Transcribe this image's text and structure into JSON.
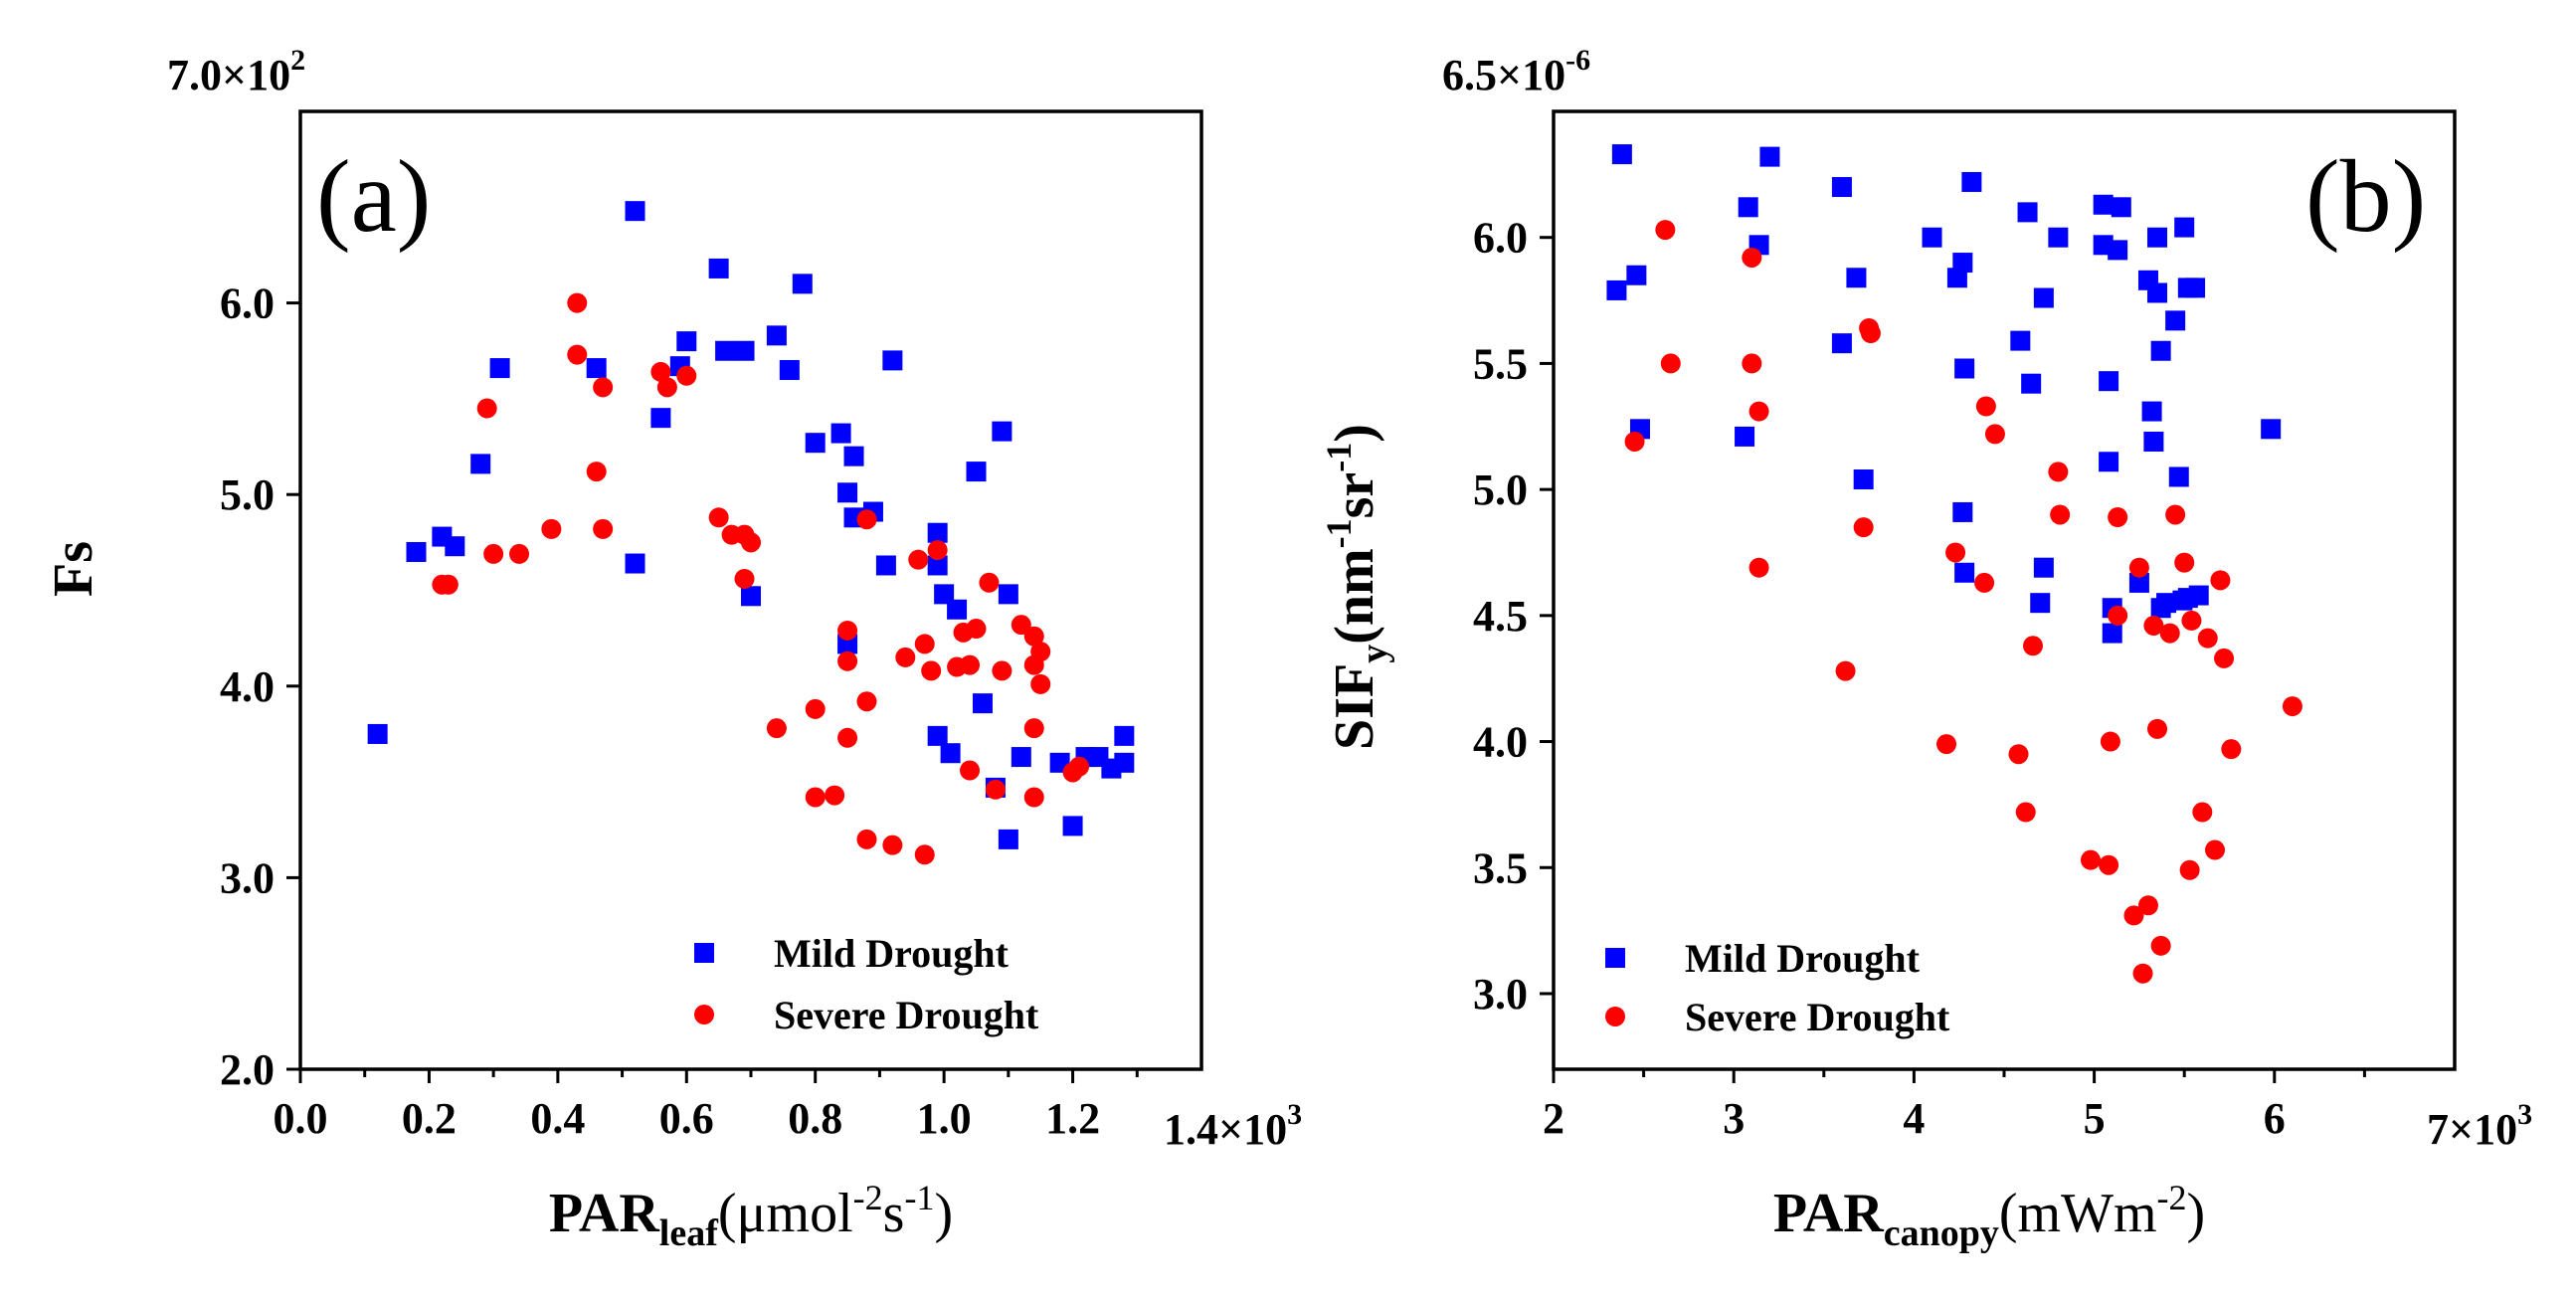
{
  "chart_data": [
    {
      "type": "scatter",
      "panel_label": "(a)",
      "ylabel": "Fs",
      "xlabel": {
        "main": "PAR",
        "sub": "leaf",
        "rest": "(μmol",
        "sup1": "-2",
        "mid": "s",
        "sup2": "-1",
        "end": ")"
      },
      "x_multiplier": "1.4×10",
      "x_multiplier_exp": "3",
      "y_multiplier": "7.0×10",
      "y_multiplier_exp": "2",
      "xlim": [
        0.0,
        1.4
      ],
      "ylim": [
        2.0,
        7.0
      ],
      "xticks": [
        0.0,
        0.2,
        0.4,
        0.6,
        0.8,
        1.0,
        1.2
      ],
      "xtick_labels": [
        "0.0",
        "0.2",
        "0.4",
        "0.6",
        "0.8",
        "1.0",
        "1.2"
      ],
      "yticks": [
        2.0,
        3.0,
        4.0,
        5.0,
        6.0
      ],
      "ytick_labels": [
        "2.0",
        "3.0",
        "4.0",
        "5.0",
        "6.0"
      ],
      "legend_position": "bottom-right",
      "series": [
        {
          "name": "Mild Drought",
          "color": "#0000ff",
          "marker": "square",
          "points": [
            [
              0.12,
              3.75
            ],
            [
              0.18,
              4.7
            ],
            [
              0.22,
              4.78
            ],
            [
              0.24,
              4.73
            ],
            [
              0.28,
              5.16
            ],
            [
              0.31,
              5.66
            ],
            [
              0.46,
              5.66
            ],
            [
              0.52,
              6.48
            ],
            [
              0.52,
              4.64
            ],
            [
              0.56,
              5.4
            ],
            [
              0.59,
              5.67
            ],
            [
              0.6,
              5.8
            ],
            [
              0.65,
              6.18
            ],
            [
              0.66,
              5.75
            ],
            [
              0.69,
              5.75
            ],
            [
              0.7,
              4.47
            ],
            [
              0.74,
              5.83
            ],
            [
              0.76,
              5.65
            ],
            [
              0.78,
              6.1
            ],
            [
              0.8,
              5.27
            ],
            [
              0.84,
              5.32
            ],
            [
              0.85,
              5.01
            ],
            [
              0.86,
              5.2
            ],
            [
              0.86,
              4.88
            ],
            [
              0.85,
              4.22
            ],
            [
              0.89,
              4.91
            ],
            [
              0.91,
              4.63
            ],
            [
              0.92,
              5.7
            ],
            [
              0.99,
              4.8
            ],
            [
              0.99,
              4.63
            ],
            [
              1.0,
              4.48
            ],
            [
              1.02,
              4.4
            ],
            [
              0.99,
              3.74
            ],
            [
              1.01,
              3.65
            ],
            [
              1.05,
              5.12
            ],
            [
              1.06,
              3.91
            ],
            [
              1.08,
              3.47
            ],
            [
              1.09,
              5.33
            ],
            [
              1.1,
              4.48
            ],
            [
              1.1,
              3.2
            ],
            [
              1.12,
              3.63
            ],
            [
              1.18,
              3.6
            ],
            [
              1.2,
              3.27
            ],
            [
              1.22,
              3.63
            ],
            [
              1.24,
              3.63
            ],
            [
              1.26,
              3.57
            ],
            [
              1.28,
              3.74
            ],
            [
              1.28,
              3.6
            ]
          ]
        },
        {
          "name": "Severe Drought",
          "color": "#ff0000",
          "marker": "circle",
          "points": [
            [
              0.22,
              4.53
            ],
            [
              0.23,
              4.53
            ],
            [
              0.29,
              5.45
            ],
            [
              0.3,
              4.69
            ],
            [
              0.34,
              4.69
            ],
            [
              0.39,
              4.82
            ],
            [
              0.43,
              6.0
            ],
            [
              0.43,
              5.73
            ],
            [
              0.46,
              5.12
            ],
            [
              0.47,
              5.56
            ],
            [
              0.47,
              4.82
            ],
            [
              0.56,
              5.64
            ],
            [
              0.57,
              5.56
            ],
            [
              0.6,
              5.62
            ],
            [
              0.65,
              4.88
            ],
            [
              0.67,
              4.79
            ],
            [
              0.69,
              4.79
            ],
            [
              0.7,
              4.75
            ],
            [
              0.69,
              4.56
            ],
            [
              0.74,
              3.78
            ],
            [
              0.8,
              3.88
            ],
            [
              0.8,
              3.42
            ],
            [
              0.83,
              3.43
            ],
            [
              0.85,
              4.29
            ],
            [
              0.85,
              4.13
            ],
            [
              0.85,
              3.73
            ],
            [
              0.88,
              4.87
            ],
            [
              0.88,
              3.92
            ],
            [
              0.88,
              3.2
            ],
            [
              0.92,
              3.17
            ],
            [
              0.94,
              4.15
            ],
            [
              0.96,
              4.66
            ],
            [
              0.97,
              4.22
            ],
            [
              0.98,
              4.08
            ],
            [
              0.97,
              3.12
            ],
            [
              0.99,
              4.71
            ],
            [
              1.02,
              4.1
            ],
            [
              1.03,
              4.28
            ],
            [
              1.04,
              4.11
            ],
            [
              1.05,
              4.3
            ],
            [
              1.04,
              3.56
            ],
            [
              1.07,
              4.54
            ],
            [
              1.09,
              4.08
            ],
            [
              1.08,
              3.46
            ],
            [
              1.12,
              4.32
            ],
            [
              1.14,
              4.26
            ],
            [
              1.15,
              4.18
            ],
            [
              1.14,
              4.11
            ],
            [
              1.15,
              4.01
            ],
            [
              1.14,
              3.78
            ],
            [
              1.14,
              3.42
            ],
            [
              1.2,
              3.55
            ],
            [
              1.21,
              3.58
            ]
          ]
        }
      ]
    },
    {
      "type": "scatter",
      "panel_label": "(b)",
      "ylabel": {
        "main": "SIF",
        "sub": "y",
        "rest": "(nm",
        "sup1": "-1",
        "mid": "sr",
        "sup2": "-1",
        "end": ")"
      },
      "xlabel": {
        "main": "PAR",
        "sub": "canopy",
        "rest": "(mWm",
        "sup1": "-2",
        "end": ")"
      },
      "x_multiplier": "7×10",
      "x_multiplier_exp": "3",
      "y_multiplier": "6.5×10",
      "y_multiplier_exp": "-6",
      "xlim": [
        2,
        7
      ],
      "ylim": [
        2.7,
        6.5
      ],
      "xticks": [
        2,
        3,
        4,
        5,
        6
      ],
      "xtick_labels": [
        "2",
        "3",
        "4",
        "5",
        "6"
      ],
      "yticks": [
        3.0,
        3.5,
        4.0,
        4.5,
        5.0,
        5.5,
        6.0
      ],
      "ytick_labels": [
        "3.0",
        "3.5",
        "4.0",
        "4.5",
        "5.0",
        "5.5",
        "6.0"
      ],
      "legend_position": "bottom-left",
      "series": [
        {
          "name": "Mild Drought",
          "color": "#0000ff",
          "marker": "square",
          "points": [
            [
              2.35,
              5.79
            ],
            [
              2.38,
              6.33
            ],
            [
              2.46,
              5.85
            ],
            [
              2.48,
              5.24
            ],
            [
              3.06,
              5.21
            ],
            [
              3.08,
              6.12
            ],
            [
              3.14,
              5.97
            ],
            [
              3.2,
              6.32
            ],
            [
              3.6,
              6.2
            ],
            [
              3.6,
              5.58
            ],
            [
              3.68,
              5.84
            ],
            [
              3.72,
              5.04
            ],
            [
              4.1,
              6.0
            ],
            [
              4.24,
              5.84
            ],
            [
              4.27,
              5.9
            ],
            [
              4.28,
              5.48
            ],
            [
              4.27,
              4.91
            ],
            [
              4.28,
              4.67
            ],
            [
              4.32,
              6.22
            ],
            [
              4.59,
              5.59
            ],
            [
              4.63,
              6.1
            ],
            [
              4.65,
              5.42
            ],
            [
              4.72,
              5.76
            ],
            [
              4.72,
              4.69
            ],
            [
              4.7,
              4.55
            ],
            [
              4.8,
              6.0
            ],
            [
              5.05,
              6.13
            ],
            [
              5.05,
              5.97
            ],
            [
              5.08,
              5.43
            ],
            [
              5.08,
              5.11
            ],
            [
              5.1,
              4.53
            ],
            [
              5.1,
              4.43
            ],
            [
              5.13,
              5.95
            ],
            [
              5.15,
              6.12
            ],
            [
              5.25,
              4.63
            ],
            [
              5.3,
              5.83
            ],
            [
              5.32,
              5.31
            ],
            [
              5.33,
              5.19
            ],
            [
              5.35,
              6.0
            ],
            [
              5.35,
              5.78
            ],
            [
              5.37,
              5.55
            ],
            [
              5.37,
              4.53
            ],
            [
              5.4,
              4.55
            ],
            [
              5.45,
              5.67
            ],
            [
              5.47,
              5.05
            ],
            [
              5.49,
              4.56
            ],
            [
              5.5,
              6.04
            ],
            [
              5.52,
              5.8
            ],
            [
              5.52,
              4.57
            ],
            [
              5.56,
              5.8
            ],
            [
              5.58,
              4.58
            ],
            [
              5.98,
              5.24
            ]
          ]
        },
        {
          "name": "Severe Drought",
          "color": "#ff0000",
          "marker": "circle",
          "points": [
            [
              2.45,
              5.19
            ],
            [
              2.62,
              6.03
            ],
            [
              2.65,
              5.5
            ],
            [
              3.1,
              5.92
            ],
            [
              3.1,
              5.5
            ],
            [
              3.14,
              5.31
            ],
            [
              3.14,
              4.69
            ],
            [
              3.62,
              4.28
            ],
            [
              3.72,
              4.85
            ],
            [
              3.75,
              5.64
            ],
            [
              3.76,
              5.62
            ],
            [
              4.18,
              3.99
            ],
            [
              4.23,
              4.75
            ],
            [
              4.4,
              5.33
            ],
            [
              4.39,
              4.63
            ],
            [
              4.45,
              5.22
            ],
            [
              4.58,
              3.95
            ],
            [
              4.62,
              3.72
            ],
            [
              4.66,
              4.38
            ],
            [
              4.8,
              5.07
            ],
            [
              4.81,
              4.9
            ],
            [
              4.98,
              3.53
            ],
            [
              5.08,
              3.51
            ],
            [
              5.09,
              4.0
            ],
            [
              5.13,
              4.89
            ],
            [
              5.13,
              4.5
            ],
            [
              5.22,
              3.31
            ],
            [
              5.25,
              4.69
            ],
            [
              5.27,
              3.08
            ],
            [
              5.3,
              3.35
            ],
            [
              5.33,
              4.46
            ],
            [
              5.35,
              4.05
            ],
            [
              5.37,
              3.19
            ],
            [
              5.42,
              4.43
            ],
            [
              5.45,
              4.9
            ],
            [
              5.5,
              4.71
            ],
            [
              5.53,
              3.49
            ],
            [
              5.54,
              4.48
            ],
            [
              5.6,
              3.72
            ],
            [
              5.63,
              4.41
            ],
            [
              5.67,
              3.57
            ],
            [
              5.7,
              4.64
            ],
            [
              5.72,
              4.33
            ],
            [
              5.76,
              3.97
            ],
            [
              6.1,
              4.14
            ]
          ]
        }
      ]
    }
  ]
}
